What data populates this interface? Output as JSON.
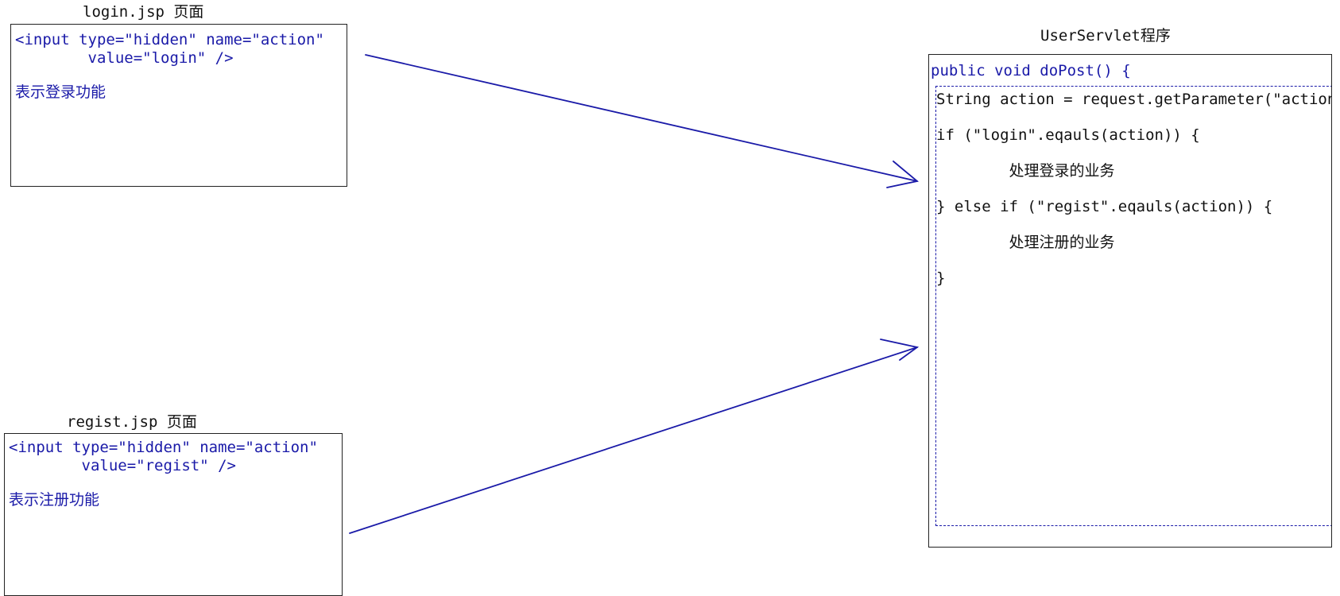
{
  "login_page": {
    "caption": "login.jsp 页面",
    "code_line1": "<input type=\"hidden\" name=\"action\"",
    "code_line2": "        value=\"login\" />",
    "description": "表示登录功能"
  },
  "regist_page": {
    "caption": "regist.jsp 页面",
    "code_line1": "<input type=\"hidden\" name=\"action\"",
    "code_line2": "        value=\"regist\" />",
    "description": "表示注册功能"
  },
  "servlet": {
    "caption": "UserServlet程序",
    "line_method": "public void doPost() {",
    "line_param": "String action = request.getParameter(\"action\");",
    "line_if": "if (\"login\".eqauls(action)) {",
    "line_login_body": "        处理登录的业务",
    "line_else_if": "} else if (\"regist\".eqauls(action)) {",
    "line_regist_body": "        处理注册的业务",
    "line_close": "}"
  },
  "colors": {
    "accent": "#1a1aa8",
    "text": "#111111",
    "border": "#222222"
  }
}
